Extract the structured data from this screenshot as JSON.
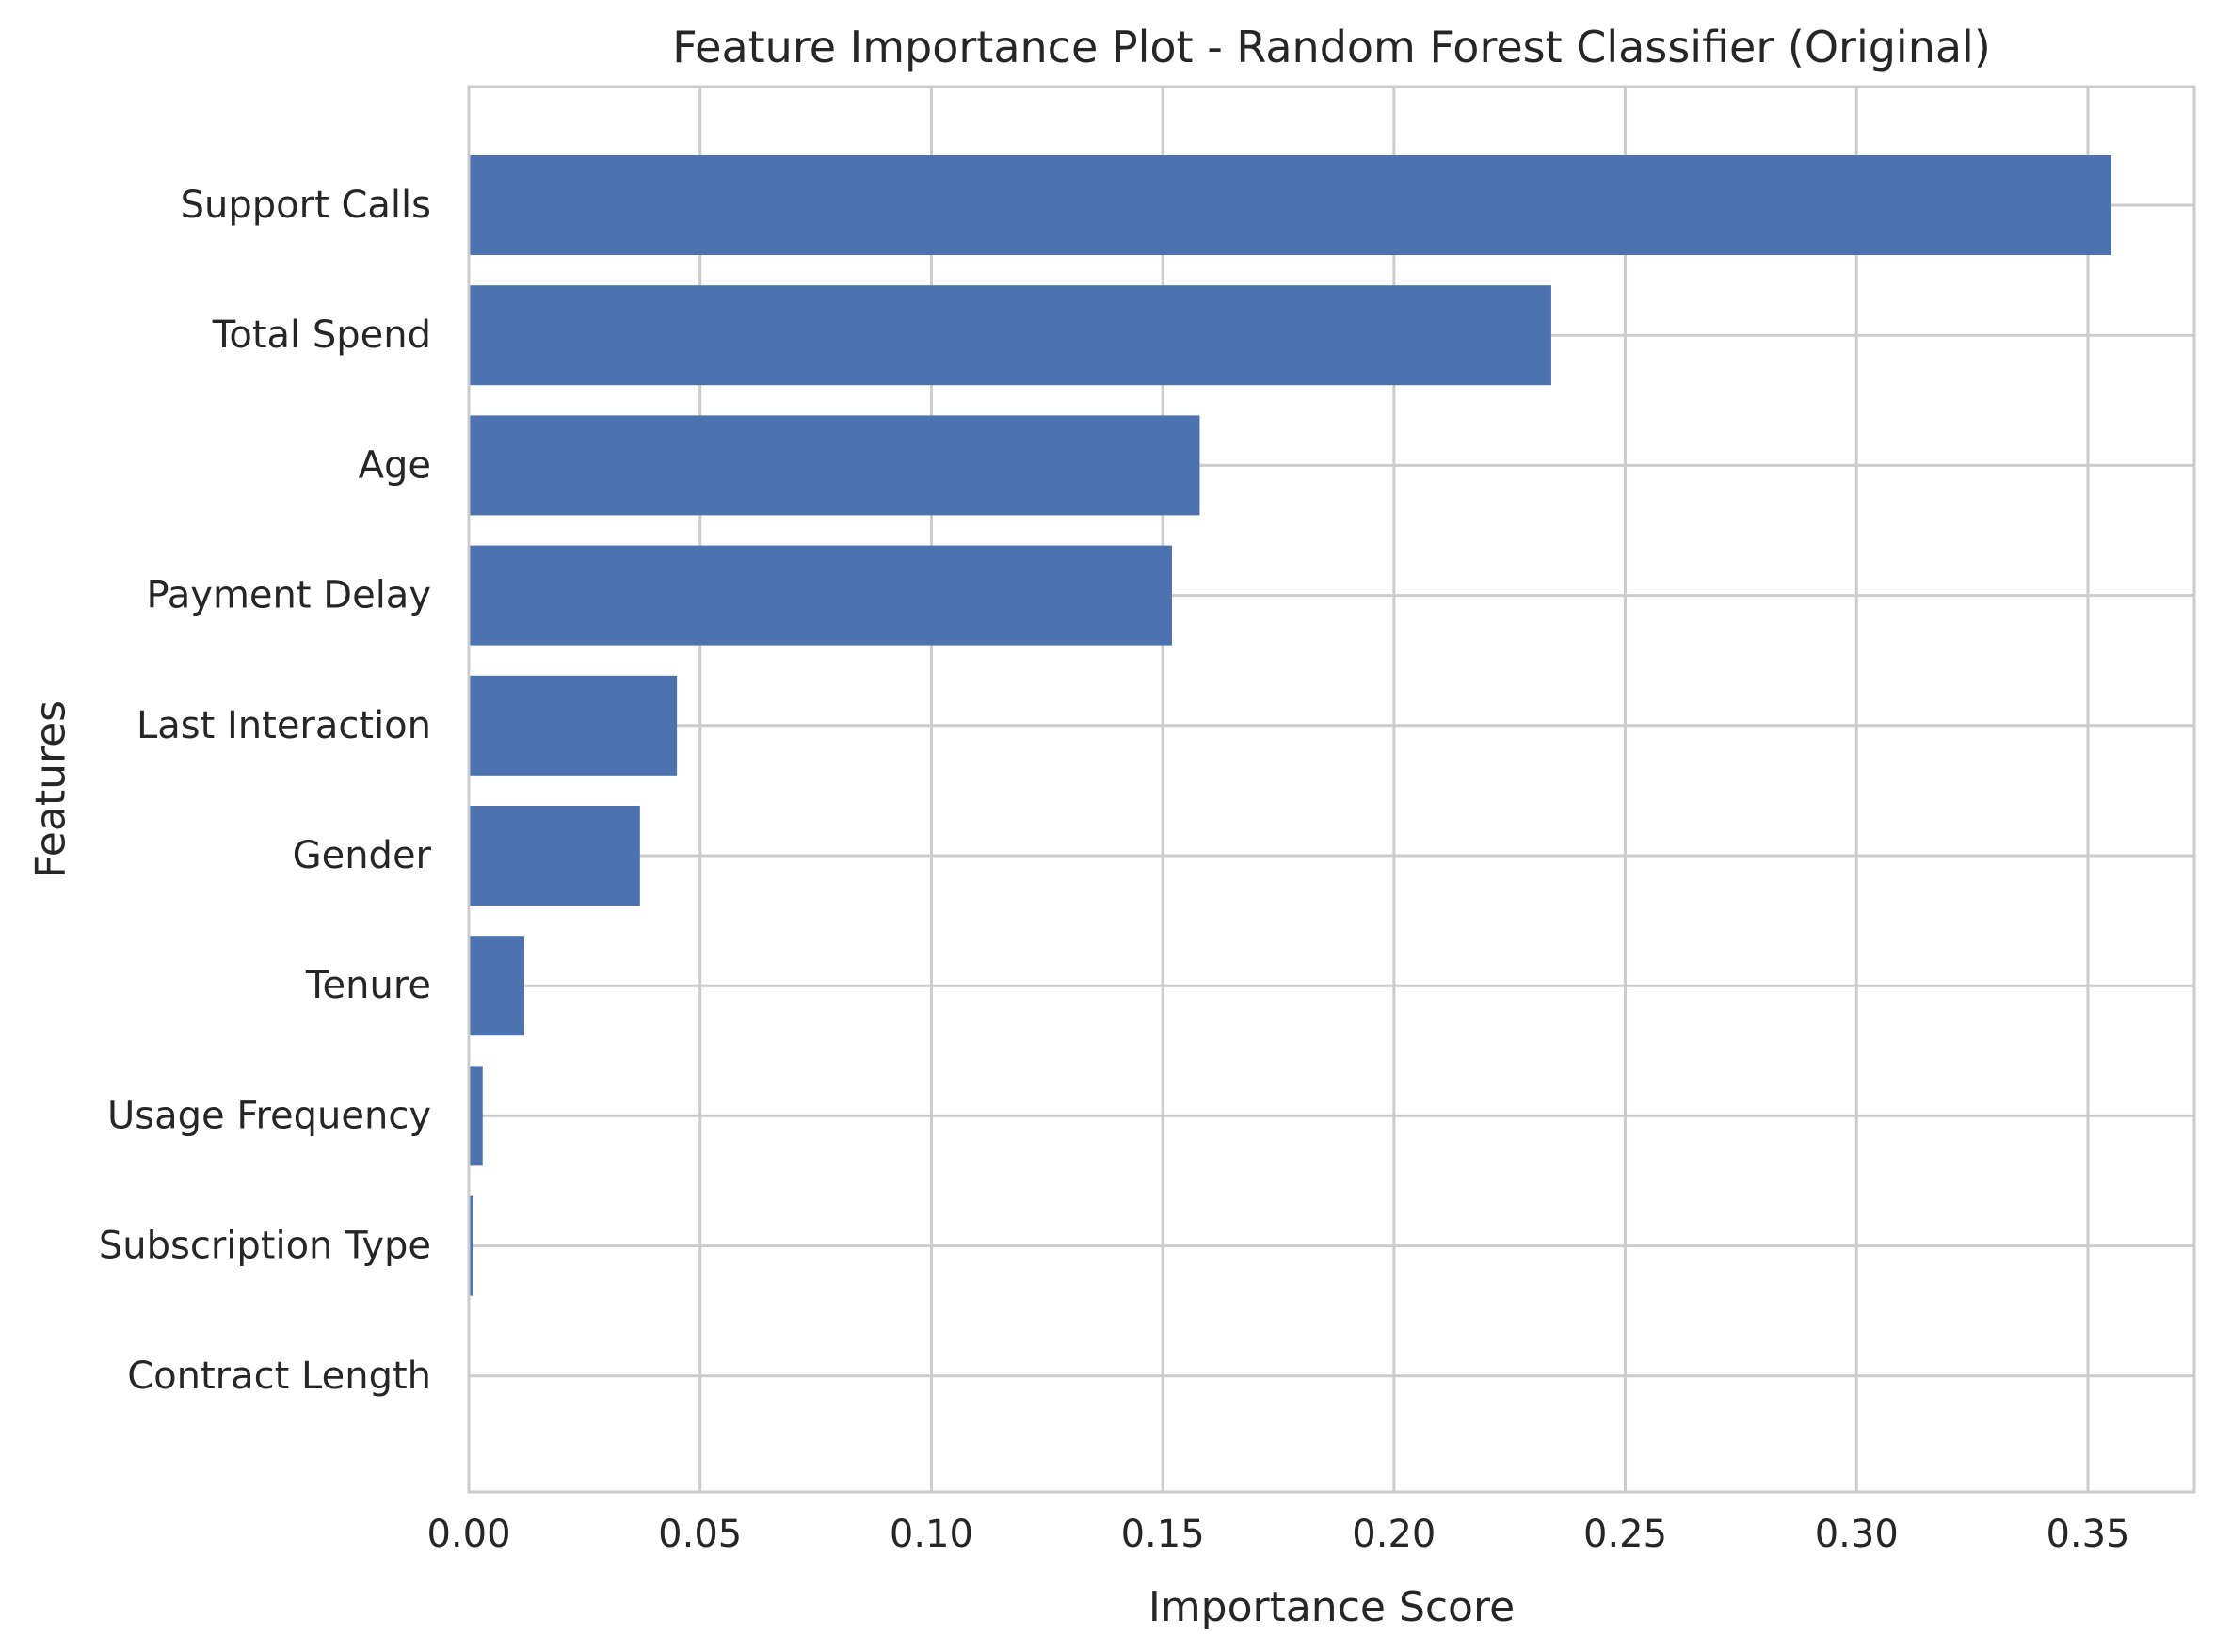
{
  "chart_data": {
    "type": "bar",
    "orientation": "horizontal",
    "title": "Feature Importance Plot - Random Forest Classifier (Original)",
    "xlabel": "Importance Score",
    "ylabel": "Features",
    "xlim": [
      0,
      0.373
    ],
    "xticks": [
      0.0,
      0.05,
      0.1,
      0.15,
      0.2,
      0.25,
      0.3,
      0.35
    ],
    "xtick_labels": [
      "0.00",
      "0.05",
      "0.10",
      "0.15",
      "0.20",
      "0.25",
      "0.30",
      "0.35"
    ],
    "categories": [
      "Support Calls",
      "Total Spend",
      "Age",
      "Payment Delay",
      "Last Interaction",
      "Gender",
      "Tenure",
      "Usage Frequency",
      "Subscription Type",
      "Contract Length"
    ],
    "values": [
      0.355,
      0.234,
      0.158,
      0.152,
      0.045,
      0.037,
      0.012,
      0.003,
      0.001,
      0.0
    ],
    "grid": true,
    "bar_color": "#4c72b0"
  }
}
